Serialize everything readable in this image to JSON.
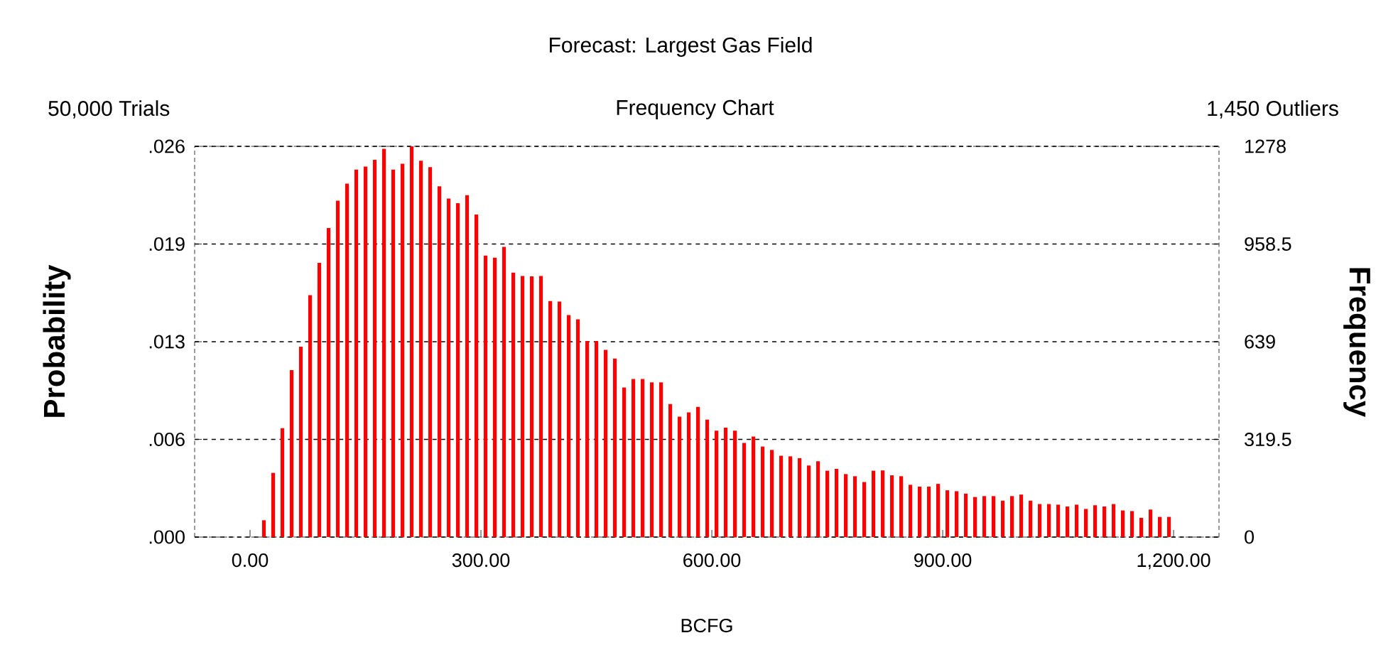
{
  "chart_data": {
    "type": "histogram",
    "title": "Forecast: Largest Gas Field",
    "subtitle": "Frequency Chart",
    "annotations": [
      "50,000 Trials",
      "1,450 Outliers"
    ],
    "xlabel": "BCFG",
    "ylabel": "Probability",
    "y2label": "Frequency",
    "bins": [
      0,
      12,
      24,
      36,
      48,
      60,
      72,
      84,
      96,
      108,
      120,
      132,
      144,
      156,
      168,
      180,
      192,
      204,
      216,
      228,
      240,
      252,
      264,
      276,
      288,
      300,
      312,
      324,
      336,
      348,
      360,
      372,
      384,
      396,
      408,
      420,
      432,
      444,
      456,
      468,
      480,
      492,
      504,
      516,
      528,
      540,
      552,
      564,
      576,
      588,
      600,
      612,
      624,
      636,
      648,
      660,
      672,
      684,
      696,
      708,
      720,
      732,
      744,
      756,
      768,
      780,
      792,
      804,
      816,
      828,
      840,
      852,
      864,
      876,
      888,
      900,
      912,
      924,
      936,
      948,
      960,
      972,
      984,
      996,
      1008,
      1020,
      1032,
      1044,
      1056,
      1068,
      1080,
      1092,
      1104,
      1116,
      1128,
      1140,
      1152,
      1164,
      1176,
      1188,
      1200
    ],
    "series": [
      {
        "color": "#ff0000",
        "axis": "y2",
        "values": [
          0,
          55,
          210,
          356,
          546,
          623,
          791,
          897,
          1011,
          1100,
          1156,
          1202,
          1212,
          1234,
          1270,
          1202,
          1221,
          1278,
          1231,
          1210,
          1147,
          1107,
          1092,
          1118,
          1055,
          921,
          914,
          949,
          865,
          854,
          853,
          854,
          772,
          770,
          726,
          712,
          641,
          641,
          612,
          584,
          489,
          517,
          517,
          506,
          506,
          435,
          394,
          408,
          426,
          384,
          348,
          358,
          348,
          308,
          329,
          296,
          285,
          266,
          264,
          258,
          234,
          248,
          217,
          223,
          206,
          199,
          180,
          217,
          218,
          202,
          199,
          171,
          165,
          165,
          174,
          153,
          150,
          142,
          131,
          134,
          134,
          119,
          134,
          139,
          119,
          108,
          108,
          106,
          100,
          106,
          92,
          104,
          100,
          108,
          87,
          85,
          63,
          90,
          66,
          66
        ]
      }
    ],
    "xlim": [
      -72,
      1259
    ],
    "xticks": [
      {
        "value": 0,
        "label": "0.00"
      },
      {
        "value": 300,
        "label": "300.00"
      },
      {
        "value": 600,
        "label": "600.00"
      },
      {
        "value": 900,
        "label": "900.00"
      },
      {
        "value": 1200,
        "label": "1,200.00"
      }
    ],
    "ylim": [
      0,
      0.02556
    ],
    "yticks": [
      {
        "value": 0,
        "label": ".000"
      },
      {
        "value": 0.00639,
        "label": ".006"
      },
      {
        "value": 0.01278,
        "label": ".013"
      },
      {
        "value": 0.01917,
        "label": ".019"
      },
      {
        "value": 0.02556,
        "label": ".026"
      }
    ],
    "y2lim": [
      0,
      1278
    ],
    "y2ticks": [
      0,
      319.5,
      639,
      958.5,
      1278
    ],
    "grid": "y"
  }
}
